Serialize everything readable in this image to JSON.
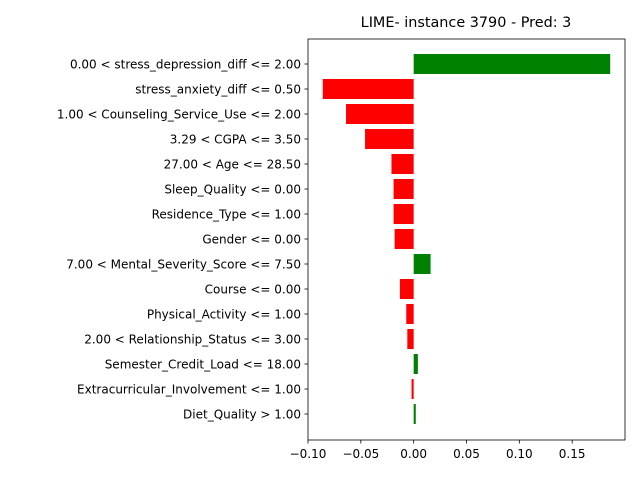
{
  "chart_data": {
    "type": "bar",
    "orientation": "horizontal",
    "title": "LIME- instance 3790 - Pred: 3",
    "xlabel": "",
    "ylabel": "",
    "xlim": [
      -0.1,
      0.2
    ],
    "xticks": [
      -0.1,
      -0.05,
      0.0,
      0.05,
      0.1,
      0.15
    ],
    "xtick_labels": [
      "−0.10",
      "−0.05",
      "0.00",
      "0.05",
      "0.10",
      "0.15"
    ],
    "grid": false,
    "legend": null,
    "colors": {
      "positive": "#008000",
      "negative": "#ff0000"
    },
    "categories": [
      "0.00 < stress_depression_diff <= 2.00",
      "stress_anxiety_diff <= 0.50",
      "1.00 < Counseling_Service_Use <= 2.00",
      "3.29 < CGPA <= 3.50",
      "27.00 < Age <= 28.50",
      "Sleep_Quality <= 0.00",
      "Residence_Type <= 1.00",
      "Gender <= 0.00",
      "7.00 < Mental_Severity_Score <= 7.50",
      "Course <= 0.00",
      "Physical_Activity <= 1.00",
      "2.00 < Relationship_Status <= 3.00",
      "Semester_Credit_Load <= 18.00",
      "Extracurricular_Involvement <= 1.00",
      "Diet_Quality > 1.00"
    ],
    "values": [
      0.186,
      -0.086,
      -0.064,
      -0.046,
      -0.021,
      -0.019,
      -0.019,
      -0.018,
      0.016,
      -0.013,
      -0.007,
      -0.006,
      0.004,
      -0.002,
      0.002
    ]
  }
}
